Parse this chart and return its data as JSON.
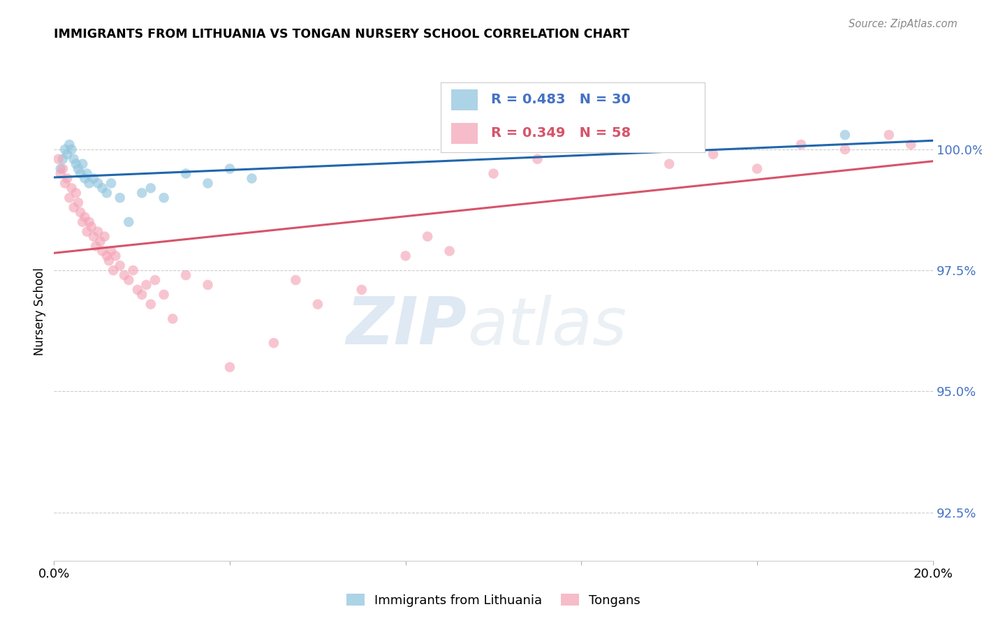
{
  "title": "IMMIGRANTS FROM LITHUANIA VS TONGAN NURSERY SCHOOL CORRELATION CHART",
  "source": "Source: ZipAtlas.com",
  "ylabel": "Nursery School",
  "xlim": [
    0.0,
    20.0
  ],
  "ylim": [
    91.5,
    101.8
  ],
  "yticks": [
    92.5,
    95.0,
    97.5,
    100.0
  ],
  "ytick_labels": [
    "92.5%",
    "95.0%",
    "97.5%",
    "100.0%"
  ],
  "legend_label_blue": "Immigrants from Lithuania",
  "legend_label_pink": "Tongans",
  "blue_color": "#92c5de",
  "pink_color": "#f4a6b8",
  "line_blue_color": "#2166ac",
  "line_pink_color": "#d6546a",
  "blue_x": [
    0.15,
    0.2,
    0.25,
    0.3,
    0.35,
    0.4,
    0.45,
    0.5,
    0.55,
    0.6,
    0.65,
    0.7,
    0.75,
    0.8,
    0.9,
    1.0,
    1.1,
    1.2,
    1.3,
    1.5,
    1.7,
    2.0,
    2.2,
    2.5,
    3.0,
    3.5,
    4.0,
    4.5,
    14.5,
    18.0
  ],
  "blue_y": [
    99.6,
    99.8,
    100.0,
    99.9,
    100.1,
    100.0,
    99.8,
    99.7,
    99.6,
    99.5,
    99.7,
    99.4,
    99.5,
    99.3,
    99.4,
    99.3,
    99.2,
    99.1,
    99.3,
    99.0,
    98.5,
    99.1,
    99.2,
    99.0,
    99.5,
    99.3,
    99.6,
    99.4,
    100.2,
    100.3
  ],
  "pink_x": [
    0.1,
    0.15,
    0.2,
    0.25,
    0.3,
    0.35,
    0.4,
    0.45,
    0.5,
    0.55,
    0.6,
    0.65,
    0.7,
    0.75,
    0.8,
    0.85,
    0.9,
    0.95,
    1.0,
    1.05,
    1.1,
    1.15,
    1.2,
    1.25,
    1.3,
    1.35,
    1.4,
    1.5,
    1.6,
    1.7,
    1.8,
    1.9,
    2.0,
    2.1,
    2.2,
    2.3,
    2.5,
    2.7,
    3.0,
    3.5,
    4.0,
    5.0,
    5.5,
    6.0,
    7.0,
    8.0,
    8.5,
    9.0,
    10.0,
    11.0,
    12.5,
    14.0,
    15.0,
    16.0,
    17.0,
    18.0,
    19.0,
    19.5
  ],
  "pink_y": [
    99.8,
    99.5,
    99.6,
    99.3,
    99.4,
    99.0,
    99.2,
    98.8,
    99.1,
    98.9,
    98.7,
    98.5,
    98.6,
    98.3,
    98.5,
    98.4,
    98.2,
    98.0,
    98.3,
    98.1,
    97.9,
    98.2,
    97.8,
    97.7,
    97.9,
    97.5,
    97.8,
    97.6,
    97.4,
    97.3,
    97.5,
    97.1,
    97.0,
    97.2,
    96.8,
    97.3,
    97.0,
    96.5,
    97.4,
    97.2,
    95.5,
    96.0,
    97.3,
    96.8,
    97.1,
    97.8,
    98.2,
    97.9,
    99.5,
    99.8,
    100.0,
    99.7,
    99.9,
    99.6,
    100.1,
    100.0,
    100.3,
    100.1
  ]
}
